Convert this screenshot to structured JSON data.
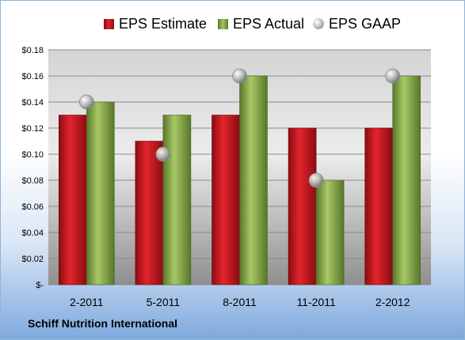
{
  "chart_data": {
    "type": "bar",
    "categories": [
      "2-2011",
      "5-2011",
      "8-2011",
      "11-2011",
      "2-2012"
    ],
    "series": [
      {
        "name": "EPS Estimate",
        "values": [
          0.13,
          0.11,
          0.13,
          0.12,
          0.12
        ],
        "color": "#c8161e",
        "kind": "bar"
      },
      {
        "name": "EPS Actual",
        "values": [
          0.14,
          0.13,
          0.16,
          0.08,
          0.16
        ],
        "color": "#8db04e",
        "kind": "bar"
      },
      {
        "name": "EPS GAAP",
        "values": [
          0.14,
          0.1,
          0.16,
          0.08,
          0.16
        ],
        "color": "#b0b0b0",
        "kind": "marker"
      }
    ],
    "y_ticks": [
      "$-",
      "$0.02",
      "$0.04",
      "$0.06",
      "$0.08",
      "$0.10",
      "$0.12",
      "$0.14",
      "$0.16",
      "$0.18"
    ],
    "ylim": [
      0,
      0.18
    ],
    "ytick_step": 0.02,
    "grid": true,
    "legend_position": "top",
    "title": "",
    "xlabel": "",
    "ylabel": ""
  },
  "footer": {
    "company": "Schiff Nutrition International"
  }
}
